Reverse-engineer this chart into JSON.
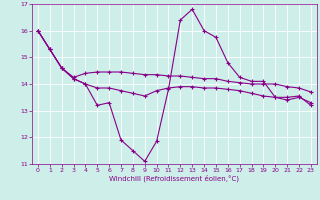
{
  "xlabel": "Windchill (Refroidissement éolien,°C)",
  "background_color": "#cdeee9",
  "line_color": "#880088",
  "xlim": [
    -0.5,
    23.5
  ],
  "ylim": [
    11,
    17
  ],
  "yticks": [
    11,
    12,
    13,
    14,
    15,
    16,
    17
  ],
  "xticks": [
    0,
    1,
    2,
    3,
    4,
    5,
    6,
    7,
    8,
    9,
    10,
    11,
    12,
    13,
    14,
    15,
    16,
    17,
    18,
    19,
    20,
    21,
    22,
    23
  ],
  "series1_x": [
    0,
    1,
    2,
    3,
    4,
    5,
    6,
    7,
    8,
    9,
    10,
    11,
    12,
    13,
    14,
    15,
    16,
    17,
    18,
    19,
    20,
    21,
    22,
    23
  ],
  "series1_y": [
    16.0,
    15.3,
    14.6,
    14.2,
    14.0,
    13.2,
    13.3,
    11.9,
    11.5,
    11.1,
    11.85,
    13.8,
    16.4,
    16.8,
    16.0,
    15.75,
    14.8,
    14.25,
    14.1,
    14.1,
    13.5,
    13.5,
    13.55,
    13.2
  ],
  "series2_x": [
    0,
    1,
    2,
    3,
    4,
    5,
    6,
    7,
    8,
    9,
    10,
    11,
    12,
    13,
    14,
    15,
    16,
    17,
    18,
    19,
    20,
    21,
    22,
    23
  ],
  "series2_y": [
    16.0,
    15.3,
    14.6,
    14.25,
    14.4,
    14.45,
    14.45,
    14.45,
    14.4,
    14.35,
    14.35,
    14.3,
    14.3,
    14.25,
    14.2,
    14.2,
    14.1,
    14.05,
    14.0,
    14.0,
    14.0,
    13.9,
    13.85,
    13.7
  ],
  "series3_x": [
    0,
    1,
    2,
    3,
    4,
    5,
    6,
    7,
    8,
    9,
    10,
    11,
    12,
    13,
    14,
    15,
    16,
    17,
    18,
    19,
    20,
    21,
    22,
    23
  ],
  "series3_y": [
    16.0,
    15.3,
    14.6,
    14.2,
    14.0,
    13.85,
    13.85,
    13.75,
    13.65,
    13.55,
    13.75,
    13.85,
    13.9,
    13.9,
    13.85,
    13.85,
    13.8,
    13.75,
    13.65,
    13.55,
    13.5,
    13.4,
    13.5,
    13.3
  ]
}
